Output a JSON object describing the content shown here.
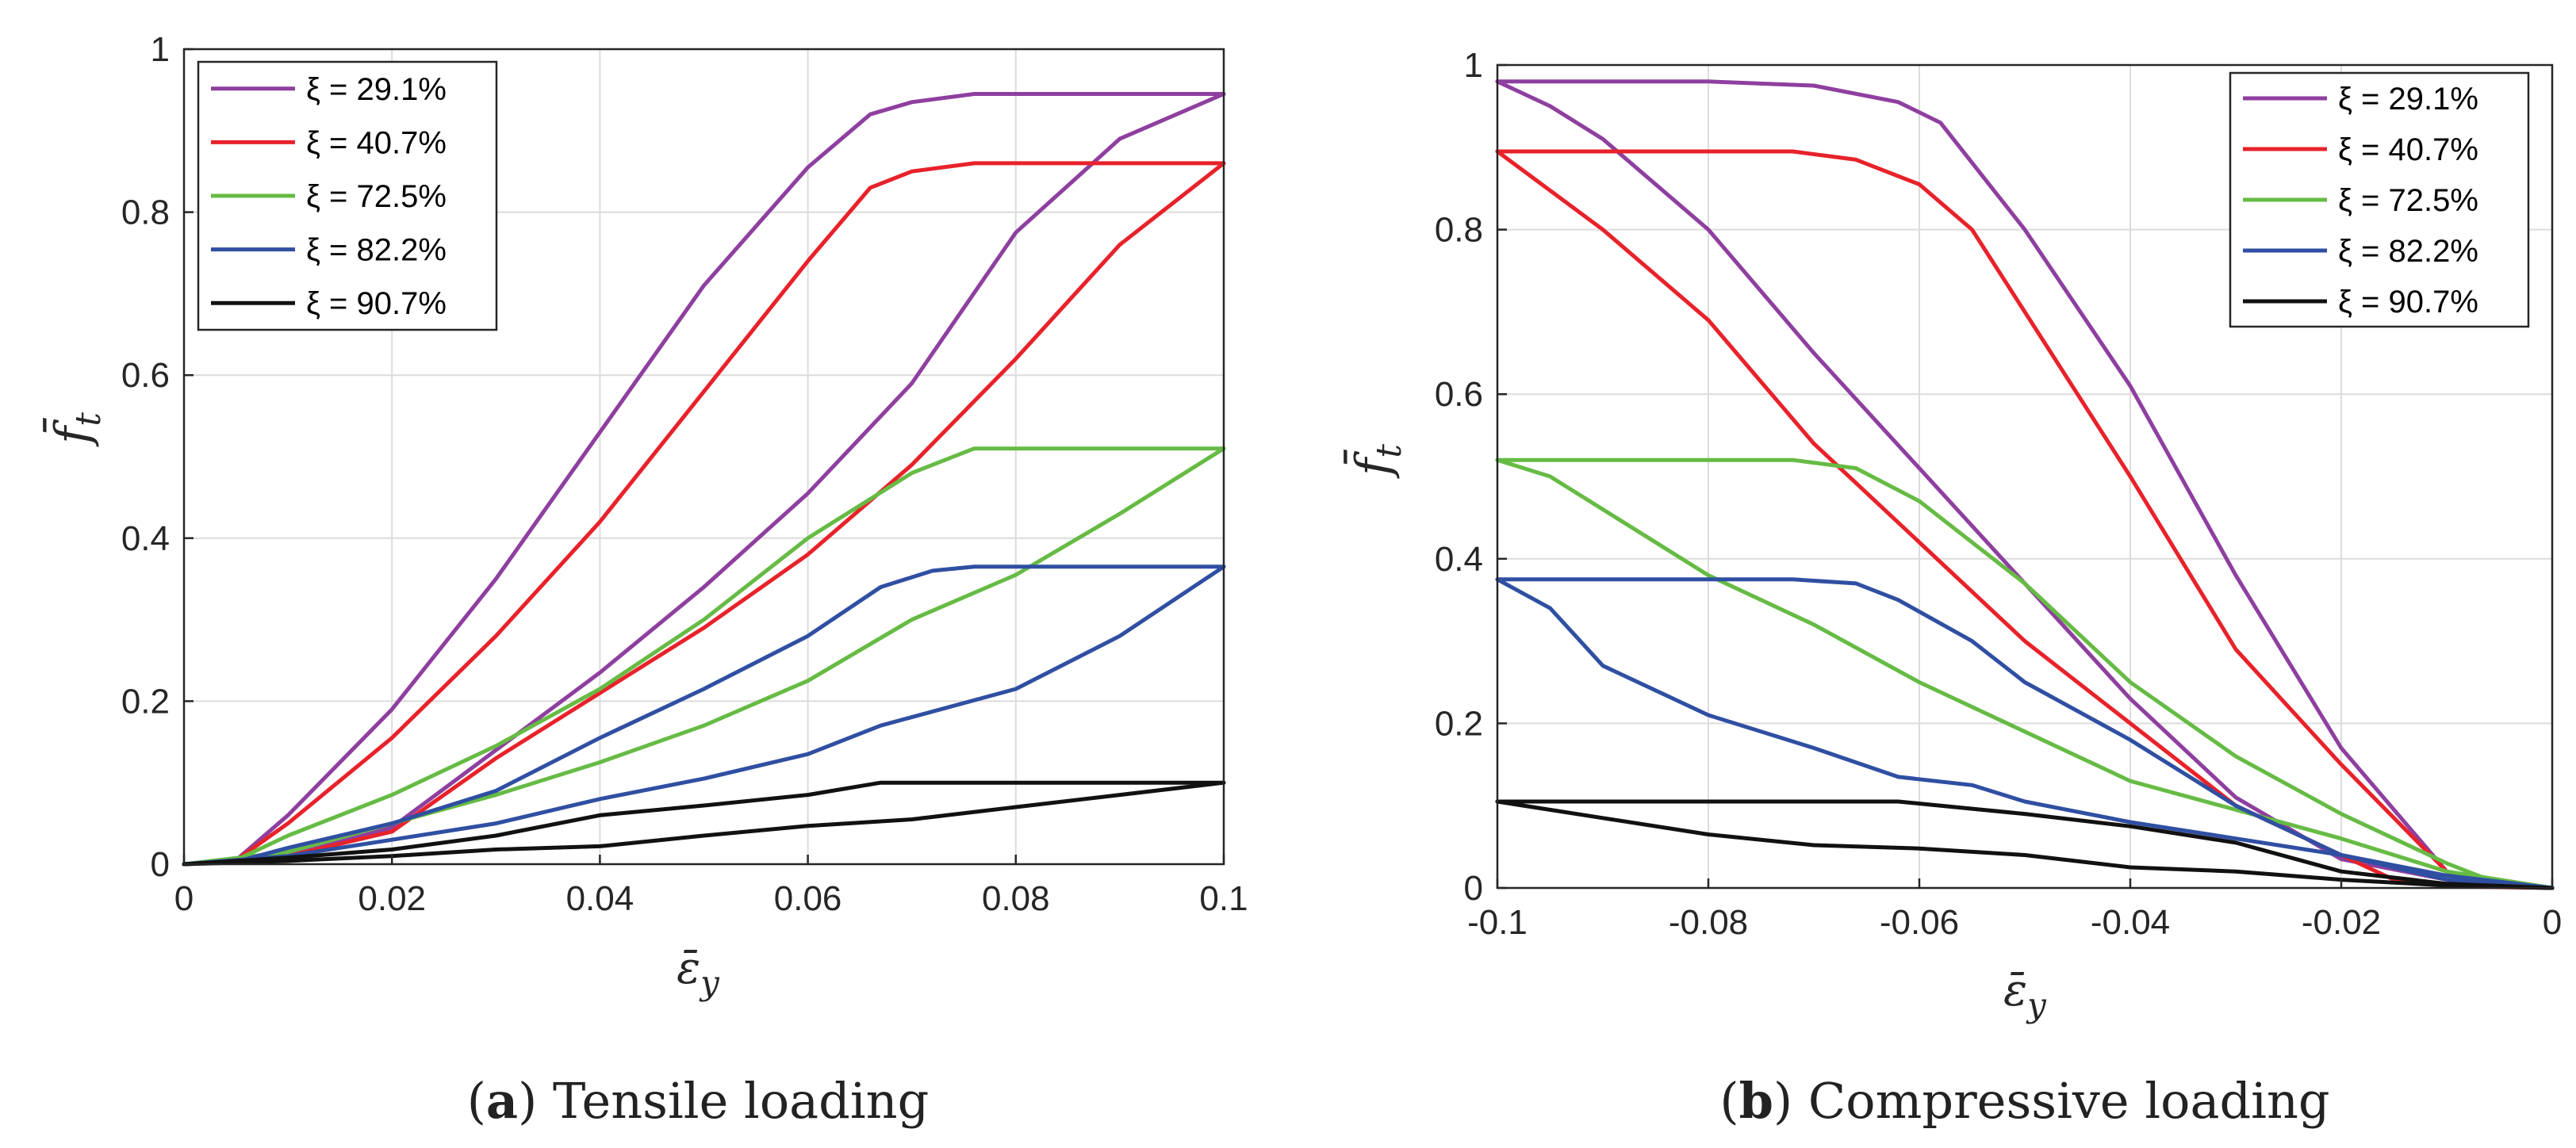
{
  "chart_data": [
    {
      "panel": "a",
      "type": "line",
      "caption_label": "a",
      "caption_text": " Tensile loading",
      "xlabel": "ε̄",
      "xlabel_sub": "y",
      "ylabel": "f̄",
      "ylabel_sub": "t",
      "xlim": [
        0,
        0.1
      ],
      "ylim": [
        0,
        1
      ],
      "xticks": [
        0,
        0.02,
        0.04,
        0.06,
        0.08,
        0.1
      ],
      "xtick_labels": [
        "0",
        "0.02",
        "0.04",
        "0.06",
        "0.08",
        "0.1"
      ],
      "yticks": [
        0,
        0.2,
        0.4,
        0.6,
        0.8,
        1
      ],
      "ytick_labels": [
        "0",
        "0.2",
        "0.4",
        "0.6",
        "0.8",
        "1"
      ],
      "legend_position": "top-left",
      "series": [
        {
          "name": "ξ = 29.1%",
          "color": "#8E3F9F",
          "upper": [
            [
              0,
              0
            ],
            [
              0.005,
              0.005
            ],
            [
              0.01,
              0.06
            ],
            [
              0.02,
              0.19
            ],
            [
              0.03,
              0.35
            ],
            [
              0.04,
              0.53
            ],
            [
              0.05,
              0.71
            ],
            [
              0.06,
              0.855
            ],
            [
              0.066,
              0.92
            ],
            [
              0.07,
              0.935
            ],
            [
              0.076,
              0.945
            ],
            [
              0.1,
              0.945
            ]
          ],
          "lower": [
            [
              0,
              0
            ],
            [
              0.01,
              0.01
            ],
            [
              0.02,
              0.045
            ],
            [
              0.03,
              0.14
            ],
            [
              0.04,
              0.235
            ],
            [
              0.05,
              0.34
            ],
            [
              0.06,
              0.455
            ],
            [
              0.07,
              0.59
            ],
            [
              0.08,
              0.775
            ],
            [
              0.09,
              0.89
            ],
            [
              0.1,
              0.945
            ]
          ]
        },
        {
          "name": "ξ = 40.7%",
          "color": "#E8222A",
          "upper": [
            [
              0,
              0
            ],
            [
              0.005,
              0.005
            ],
            [
              0.01,
              0.05
            ],
            [
              0.02,
              0.155
            ],
            [
              0.03,
              0.28
            ],
            [
              0.04,
              0.42
            ],
            [
              0.05,
              0.58
            ],
            [
              0.06,
              0.74
            ],
            [
              0.066,
              0.83
            ],
            [
              0.07,
              0.85
            ],
            [
              0.076,
              0.86
            ],
            [
              0.1,
              0.86
            ]
          ],
          "lower": [
            [
              0,
              0
            ],
            [
              0.01,
              0.01
            ],
            [
              0.02,
              0.04
            ],
            [
              0.03,
              0.13
            ],
            [
              0.04,
              0.21
            ],
            [
              0.05,
              0.29
            ],
            [
              0.06,
              0.38
            ],
            [
              0.07,
              0.49
            ],
            [
              0.08,
              0.62
            ],
            [
              0.09,
              0.76
            ],
            [
              0.1,
              0.86
            ]
          ]
        },
        {
          "name": "ξ = 72.5%",
          "color": "#66BB44",
          "upper": [
            [
              0,
              0
            ],
            [
              0.005,
              0.005
            ],
            [
              0.01,
              0.035
            ],
            [
              0.02,
              0.085
            ],
            [
              0.03,
              0.145
            ],
            [
              0.04,
              0.215
            ],
            [
              0.05,
              0.3
            ],
            [
              0.06,
              0.4
            ],
            [
              0.07,
              0.48
            ],
            [
              0.076,
              0.51
            ],
            [
              0.1,
              0.51
            ]
          ],
          "lower": [
            [
              0,
              0
            ],
            [
              0.01,
              0.015
            ],
            [
              0.02,
              0.05
            ],
            [
              0.03,
              0.085
            ],
            [
              0.04,
              0.125
            ],
            [
              0.05,
              0.17
            ],
            [
              0.06,
              0.225
            ],
            [
              0.07,
              0.3
            ],
            [
              0.08,
              0.355
            ],
            [
              0.09,
              0.43
            ],
            [
              0.1,
              0.51
            ]
          ]
        },
        {
          "name": "ξ = 82.2%",
          "color": "#2F4FA2",
          "upper": [
            [
              0,
              0
            ],
            [
              0.005,
              0.003
            ],
            [
              0.01,
              0.02
            ],
            [
              0.02,
              0.05
            ],
            [
              0.03,
              0.09
            ],
            [
              0.04,
              0.155
            ],
            [
              0.05,
              0.215
            ],
            [
              0.06,
              0.28
            ],
            [
              0.067,
              0.34
            ],
            [
              0.072,
              0.36
            ],
            [
              0.076,
              0.365
            ],
            [
              0.1,
              0.365
            ]
          ],
          "lower": [
            [
              0,
              0
            ],
            [
              0.01,
              0.01
            ],
            [
              0.02,
              0.03
            ],
            [
              0.03,
              0.05
            ],
            [
              0.04,
              0.08
            ],
            [
              0.05,
              0.105
            ],
            [
              0.06,
              0.135
            ],
            [
              0.067,
              0.17
            ],
            [
              0.08,
              0.215
            ],
            [
              0.09,
              0.28
            ],
            [
              0.1,
              0.365
            ]
          ]
        },
        {
          "name": "ξ = 90.7%",
          "color": "#111111",
          "upper": [
            [
              0,
              0
            ],
            [
              0.01,
              0.008
            ],
            [
              0.02,
              0.018
            ],
            [
              0.03,
              0.035
            ],
            [
              0.04,
              0.06
            ],
            [
              0.05,
              0.072
            ],
            [
              0.06,
              0.085
            ],
            [
              0.067,
              0.1
            ],
            [
              0.1,
              0.1
            ]
          ],
          "lower": [
            [
              0,
              0
            ],
            [
              0.01,
              0.004
            ],
            [
              0.02,
              0.01
            ],
            [
              0.03,
              0.018
            ],
            [
              0.04,
              0.022
            ],
            [
              0.05,
              0.035
            ],
            [
              0.06,
              0.047
            ],
            [
              0.07,
              0.055
            ],
            [
              0.08,
              0.07
            ],
            [
              0.09,
              0.085
            ],
            [
              0.1,
              0.1
            ]
          ]
        }
      ]
    },
    {
      "panel": "b",
      "type": "line",
      "caption_label": "b",
      "caption_text": " Compressive loading",
      "xlabel": "ε̄",
      "xlabel_sub": "y",
      "ylabel": "f̄",
      "ylabel_sub": "t",
      "xlim": [
        -0.1,
        0
      ],
      "ylim": [
        0,
        1
      ],
      "xticks": [
        -0.1,
        -0.08,
        -0.06,
        -0.04,
        -0.02,
        0
      ],
      "xtick_labels": [
        "-0.1",
        "-0.08",
        "-0.06",
        "-0.04",
        "-0.02",
        "0"
      ],
      "yticks": [
        0,
        0.2,
        0.4,
        0.6,
        0.8,
        1
      ],
      "ytick_labels": [
        "0",
        "0.2",
        "0.4",
        "0.6",
        "0.8",
        "1"
      ],
      "legend_position": "top-right",
      "series": [
        {
          "name": "ξ = 29.1%",
          "color": "#8E3F9F",
          "upper": [
            [
              -0.1,
              0.98
            ],
            [
              -0.08,
              0.98
            ],
            [
              -0.07,
              0.975
            ],
            [
              -0.062,
              0.955
            ],
            [
              -0.058,
              0.93
            ],
            [
              -0.05,
              0.8
            ],
            [
              -0.04,
              0.61
            ],
            [
              -0.03,
              0.38
            ],
            [
              -0.02,
              0.17
            ],
            [
              -0.01,
              0.02
            ],
            [
              -0.005,
              0.003
            ],
            [
              0,
              0
            ]
          ],
          "lower": [
            [
              -0.1,
              0.98
            ],
            [
              -0.095,
              0.95
            ],
            [
              -0.09,
              0.91
            ],
            [
              -0.08,
              0.8
            ],
            [
              -0.07,
              0.65
            ],
            [
              -0.06,
              0.51
            ],
            [
              -0.05,
              0.37
            ],
            [
              -0.04,
              0.23
            ],
            [
              -0.03,
              0.11
            ],
            [
              -0.02,
              0.035
            ],
            [
              -0.01,
              0.01
            ],
            [
              0,
              0
            ]
          ]
        },
        {
          "name": "ξ = 40.7%",
          "color": "#E8222A",
          "upper": [
            [
              -0.1,
              0.895
            ],
            [
              -0.072,
              0.895
            ],
            [
              -0.066,
              0.885
            ],
            [
              -0.06,
              0.855
            ],
            [
              -0.055,
              0.8
            ],
            [
              -0.05,
              0.7
            ],
            [
              -0.04,
              0.5
            ],
            [
              -0.03,
              0.29
            ],
            [
              -0.02,
              0.15
            ],
            [
              -0.01,
              0.02
            ],
            [
              -0.005,
              0.003
            ],
            [
              0,
              0
            ]
          ],
          "lower": [
            [
              -0.1,
              0.895
            ],
            [
              -0.09,
              0.8
            ],
            [
              -0.08,
              0.69
            ],
            [
              -0.07,
              0.54
            ],
            [
              -0.06,
              0.42
            ],
            [
              -0.05,
              0.3
            ],
            [
              -0.04,
              0.2
            ],
            [
              -0.03,
              0.1
            ],
            [
              -0.02,
              0.04
            ],
            [
              -0.015,
              0.01
            ],
            [
              -0.01,
              0.002
            ],
            [
              0,
              0
            ]
          ]
        },
        {
          "name": "ξ = 72.5%",
          "color": "#66BB44",
          "upper": [
            [
              -0.1,
              0.52
            ],
            [
              -0.072,
              0.52
            ],
            [
              -0.066,
              0.51
            ],
            [
              -0.06,
              0.47
            ],
            [
              -0.05,
              0.37
            ],
            [
              -0.04,
              0.25
            ],
            [
              -0.03,
              0.16
            ],
            [
              -0.02,
              0.09
            ],
            [
              -0.015,
              0.06
            ],
            [
              -0.01,
              0.03
            ],
            [
              -0.005,
              0.005
            ],
            [
              0,
              0
            ]
          ],
          "lower": [
            [
              -0.1,
              0.52
            ],
            [
              -0.095,
              0.5
            ],
            [
              -0.09,
              0.46
            ],
            [
              -0.08,
              0.38
            ],
            [
              -0.07,
              0.32
            ],
            [
              -0.06,
              0.25
            ],
            [
              -0.05,
              0.19
            ],
            [
              -0.04,
              0.13
            ],
            [
              -0.03,
              0.095
            ],
            [
              -0.02,
              0.06
            ],
            [
              -0.01,
              0.02
            ],
            [
              0,
              0
            ]
          ]
        },
        {
          "name": "ξ = 82.2%",
          "color": "#2F4FA2",
          "upper": [
            [
              -0.1,
              0.375
            ],
            [
              -0.072,
              0.375
            ],
            [
              -0.066,
              0.37
            ],
            [
              -0.062,
              0.35
            ],
            [
              -0.055,
              0.3
            ],
            [
              -0.05,
              0.25
            ],
            [
              -0.04,
              0.18
            ],
            [
              -0.03,
              0.1
            ],
            [
              -0.02,
              0.04
            ],
            [
              -0.01,
              0.015
            ],
            [
              0,
              0
            ]
          ],
          "lower": [
            [
              -0.1,
              0.375
            ],
            [
              -0.095,
              0.34
            ],
            [
              -0.09,
              0.27
            ],
            [
              -0.08,
              0.21
            ],
            [
              -0.07,
              0.17
            ],
            [
              -0.062,
              0.135
            ],
            [
              -0.055,
              0.125
            ],
            [
              -0.05,
              0.105
            ],
            [
              -0.04,
              0.08
            ],
            [
              -0.03,
              0.06
            ],
            [
              -0.02,
              0.04
            ],
            [
              -0.01,
              0.01
            ],
            [
              0,
              0
            ]
          ]
        },
        {
          "name": "ξ = 90.7%",
          "color": "#111111",
          "upper": [
            [
              -0.1,
              0.105
            ],
            [
              -0.062,
              0.105
            ],
            [
              -0.05,
              0.09
            ],
            [
              -0.04,
              0.075
            ],
            [
              -0.03,
              0.055
            ],
            [
              -0.02,
              0.02
            ],
            [
              -0.01,
              0.005
            ],
            [
              0,
              0
            ]
          ],
          "lower": [
            [
              -0.1,
              0.105
            ],
            [
              -0.09,
              0.085
            ],
            [
              -0.08,
              0.065
            ],
            [
              -0.07,
              0.052
            ],
            [
              -0.06,
              0.048
            ],
            [
              -0.05,
              0.04
            ],
            [
              -0.04,
              0.025
            ],
            [
              -0.03,
              0.02
            ],
            [
              -0.02,
              0.01
            ],
            [
              -0.01,
              0.003
            ],
            [
              0,
              0
            ]
          ]
        }
      ]
    }
  ]
}
